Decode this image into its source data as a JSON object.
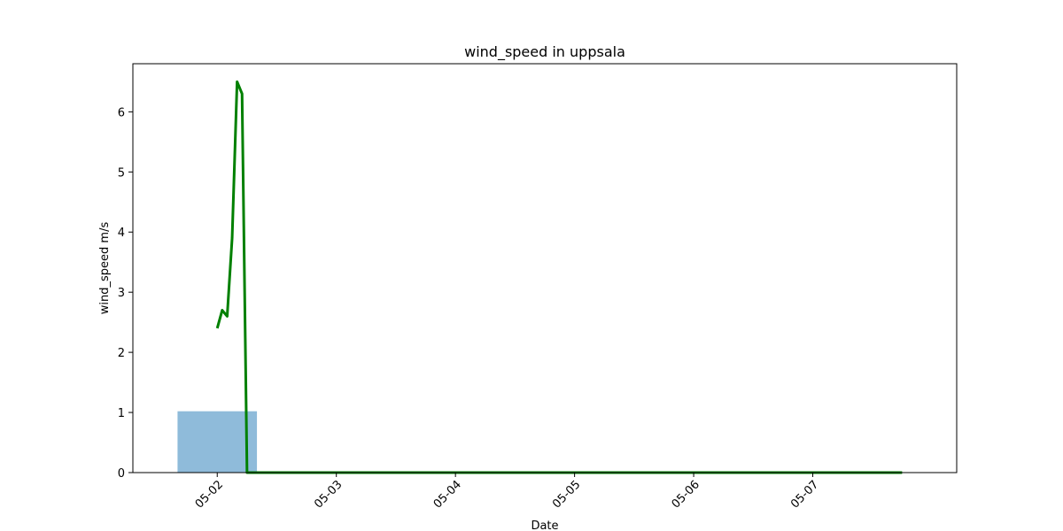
{
  "chart_data": {
    "type": "line",
    "title": "wind_speed in uppsala",
    "xlabel": "Date",
    "ylabel": "wind_speed m/s",
    "xlim": [
      "2024-05-01T07:00",
      "2024-05-08T05:00"
    ],
    "ylim": [
      0,
      6.8
    ],
    "x_ticks": [
      {
        "date": "2024-05-02T00:00",
        "label": "05-02"
      },
      {
        "date": "2024-05-03T00:00",
        "label": "05-03"
      },
      {
        "date": "2024-05-04T00:00",
        "label": "05-04"
      },
      {
        "date": "2024-05-05T00:00",
        "label": "05-05"
      },
      {
        "date": "2024-05-06T00:00",
        "label": "05-06"
      },
      {
        "date": "2024-05-07T00:00",
        "label": "05-07"
      }
    ],
    "y_ticks": [
      {
        "value": 0,
        "label": "0"
      },
      {
        "value": 1,
        "label": "1"
      },
      {
        "value": 2,
        "label": "2"
      },
      {
        "value": 3,
        "label": "3"
      },
      {
        "value": 4,
        "label": "4"
      },
      {
        "value": 5,
        "label": "5"
      },
      {
        "value": 6,
        "label": "6"
      }
    ],
    "grid": false,
    "legend": "none",
    "series": [
      {
        "kind": "line",
        "color": "#008000",
        "x": [
          "2024-05-02T00:00",
          "2024-05-02T01:00",
          "2024-05-02T02:00",
          "2024-05-02T03:00",
          "2024-05-02T04:00",
          "2024-05-02T05:00",
          "2024-05-02T06:00",
          "2024-05-02T18:00",
          "2024-05-03T18:00",
          "2024-05-04T18:00",
          "2024-05-05T18:00",
          "2024-05-06T18:00",
          "2024-05-07T18:00"
        ],
        "y": [
          2.4,
          2.7,
          2.6,
          3.9,
          6.5,
          6.3,
          0.0,
          0.0,
          0.0,
          0.0,
          0.0,
          0.0,
          0.0
        ]
      },
      {
        "kind": "bar",
        "color": "#8fbbda",
        "x_start": "2024-05-01T16:00",
        "x_end": "2024-05-02T08:00",
        "value": 1.02
      }
    ]
  }
}
